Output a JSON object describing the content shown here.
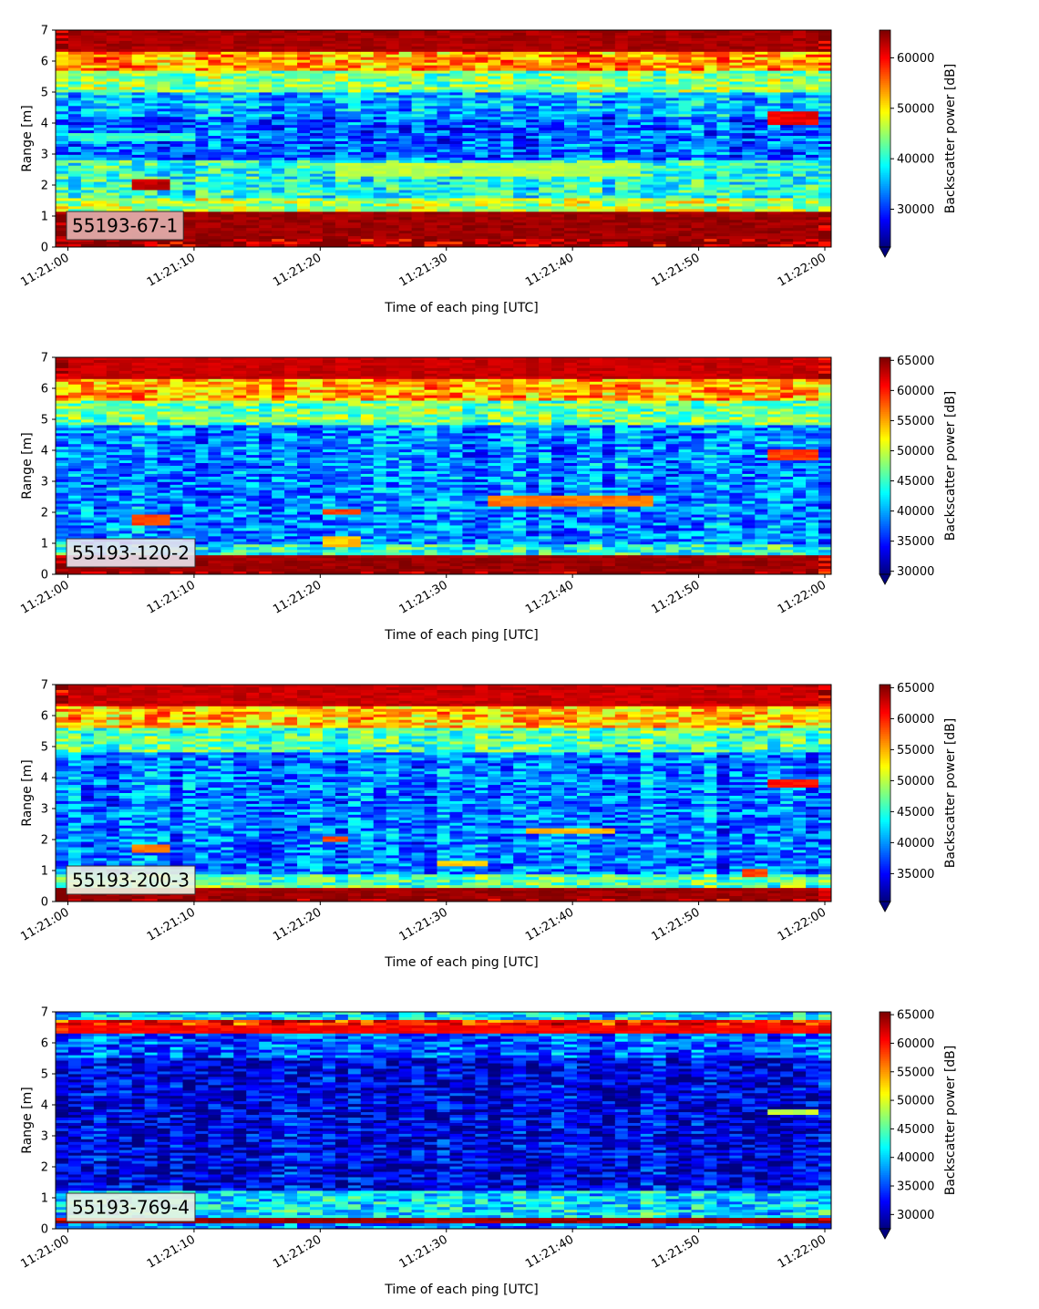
{
  "chart_data": [
    {
      "type": "heatmap",
      "id_label": "55193-67-1",
      "id_box_color": "#e3b3b0",
      "xlabel": "Time of each ping [UTC]",
      "ylabel": "Range [m]",
      "xticks": [
        "11:21:00",
        "11:21:10",
        "11:21:20",
        "11:21:30",
        "11:21:40",
        "11:21:50",
        "11:22:00"
      ],
      "yticks": [
        "0",
        "1",
        "2",
        "3",
        "4",
        "5",
        "6",
        "7"
      ],
      "ylim": [
        0,
        7
      ],
      "colorbar_label": "Backscatter power [dB]",
      "colorbar_ticks": [
        "30000",
        "40000",
        "50000",
        "60000"
      ],
      "clim": [
        22500,
        65500
      ],
      "colormap": "jet",
      "features": [
        {
          "desc": "bottom band",
          "y0": 0.25,
          "y1": 1.1,
          "t0": 0,
          "t1": 60,
          "value": 65500
        },
        {
          "desc": "top band",
          "y0": 6.3,
          "y1": 7.0,
          "t0": 0,
          "t1": 60,
          "value": 65000
        },
        {
          "desc": "target",
          "y0": 1.8,
          "y1": 2.2,
          "t0": 5.5,
          "t1": 8.5,
          "value": 64000
        },
        {
          "desc": "target",
          "y0": 3.9,
          "y1": 4.4,
          "t0": 55.5,
          "t1": 60,
          "value": 62000
        },
        {
          "desc": "layer",
          "y0": 2.3,
          "y1": 2.7,
          "t0": 21,
          "t1": 45,
          "value": 48000
        },
        {
          "desc": "layer",
          "y0": 3.4,
          "y1": 3.7,
          "t0": 0,
          "t1": 10,
          "value": 42000
        }
      ]
    },
    {
      "type": "heatmap",
      "id_label": "55193-120-2",
      "id_box_color": "#e9e4f0",
      "xlabel": "Time of each ping [UTC]",
      "ylabel": "Range [m]",
      "xticks": [
        "11:21:00",
        "11:21:10",
        "11:21:20",
        "11:21:30",
        "11:21:40",
        "11:21:50",
        "11:22:00"
      ],
      "yticks": [
        "0",
        "1",
        "2",
        "3",
        "4",
        "5",
        "6",
        "7"
      ],
      "ylim": [
        0,
        7
      ],
      "colorbar_label": "Backscatter power [dB]",
      "colorbar_ticks": [
        "30000",
        "35000",
        "40000",
        "45000",
        "50000",
        "55000",
        "60000",
        "65000"
      ],
      "clim": [
        29500,
        65500
      ],
      "colormap": "jet",
      "features": [
        {
          "desc": "bottom band",
          "y0": 0.1,
          "y1": 0.65,
          "t0": 0,
          "t1": 60,
          "value": 65500
        },
        {
          "desc": "top band",
          "y0": 6.3,
          "y1": 7.0,
          "t0": 0,
          "t1": 60,
          "value": 64000
        },
        {
          "desc": "target",
          "y0": 1.6,
          "y1": 1.9,
          "t0": 5.5,
          "t1": 8.5,
          "value": 60000
        },
        {
          "desc": "target",
          "y0": 1.9,
          "y1": 2.1,
          "t0": 20.5,
          "t1": 23,
          "value": 60000
        },
        {
          "desc": "target",
          "y0": 2.2,
          "y1": 2.5,
          "t0": 33,
          "t1": 46,
          "value": 58000
        },
        {
          "desc": "target",
          "y0": 3.7,
          "y1": 4.0,
          "t0": 55.5,
          "t1": 60,
          "value": 60000
        },
        {
          "desc": "target",
          "y0": 0.9,
          "y1": 1.2,
          "t0": 20,
          "t1": 23,
          "value": 55000
        }
      ]
    },
    {
      "type": "heatmap",
      "id_label": "55193-200-3",
      "id_box_color": "#eef3e2",
      "xlabel": "Time of each ping [UTC]",
      "ylabel": "Range [m]",
      "xticks": [
        "11:21:00",
        "11:21:10",
        "11:21:20",
        "11:21:30",
        "11:21:40",
        "11:21:50",
        "11:22:00"
      ],
      "yticks": [
        "0",
        "1",
        "2",
        "3",
        "4",
        "5",
        "6",
        "7"
      ],
      "ylim": [
        0,
        7
      ],
      "colorbar_label": "Backscatter power [dB]",
      "colorbar_ticks": [
        "35000",
        "40000",
        "45000",
        "50000",
        "55000",
        "60000",
        "65000"
      ],
      "clim": [
        30500,
        65500
      ],
      "colormap": "jet",
      "features": [
        {
          "desc": "bottom band",
          "y0": 0.1,
          "y1": 0.45,
          "t0": 0,
          "t1": 60,
          "value": 65500
        },
        {
          "desc": "top band",
          "y0": 6.3,
          "y1": 7.0,
          "t0": 0,
          "t1": 60,
          "value": 64000
        },
        {
          "desc": "target",
          "y0": 1.6,
          "y1": 1.8,
          "t0": 5.5,
          "t1": 8.5,
          "value": 58000
        },
        {
          "desc": "target",
          "y0": 1.9,
          "y1": 2.1,
          "t0": 20.5,
          "t1": 22,
          "value": 60000
        },
        {
          "desc": "target",
          "y0": 2.2,
          "y1": 2.4,
          "t0": 36,
          "t1": 43,
          "value": 56000
        },
        {
          "desc": "target",
          "y0": 3.7,
          "y1": 3.95,
          "t0": 55,
          "t1": 60,
          "value": 62000
        },
        {
          "desc": "target",
          "y0": 0.8,
          "y1": 1.05,
          "t0": 53,
          "t1": 55.5,
          "value": 60000
        },
        {
          "desc": "target",
          "y0": 1.1,
          "y1": 1.3,
          "t0": 29.5,
          "t1": 33,
          "value": 55000
        }
      ]
    },
    {
      "type": "heatmap",
      "id_label": "55193-769-4",
      "id_box_color": "#eef3e2",
      "xlabel": "Time of each ping [UTC]",
      "ylabel": "Range [m]",
      "xticks": [
        "11:21:00",
        "11:21:10",
        "11:21:20",
        "11:21:30",
        "11:21:40",
        "11:21:50",
        "11:22:00"
      ],
      "yticks": [
        "0",
        "1",
        "2",
        "3",
        "4",
        "5",
        "6",
        "7"
      ],
      "ylim": [
        0,
        7
      ],
      "colorbar_label": "Backscatter power [dB]",
      "colorbar_ticks": [
        "30000",
        "35000",
        "40000",
        "45000",
        "50000",
        "55000",
        "60000",
        "65000"
      ],
      "clim": [
        27500,
        65500
      ],
      "colormap": "jet",
      "features": [
        {
          "desc": "bottom band",
          "y0": 0.15,
          "y1": 0.35,
          "t0": 0,
          "t1": 60,
          "value": 65500
        },
        {
          "desc": "top band",
          "y0": 6.3,
          "y1": 6.6,
          "t0": 0,
          "t1": 60,
          "value": 62000
        },
        {
          "desc": "target",
          "y0": 3.7,
          "y1": 3.85,
          "t0": 55,
          "t1": 60,
          "value": 50000
        }
      ]
    }
  ]
}
